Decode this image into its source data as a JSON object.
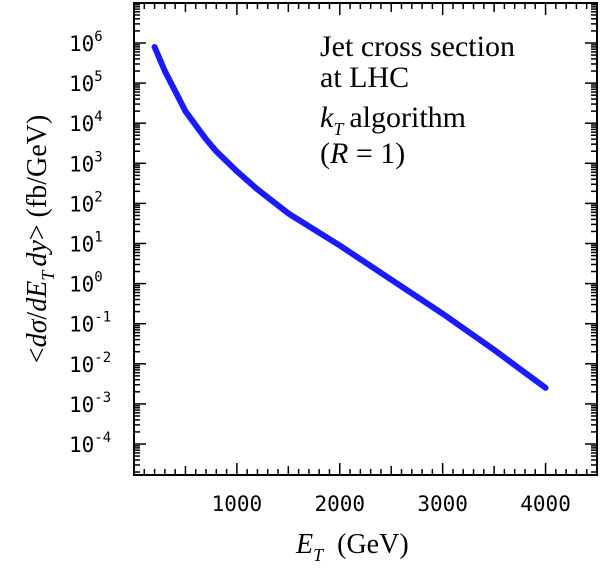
{
  "chart_data": {
    "type": "line",
    "title": "",
    "xlabel": "E_T (GeV)",
    "ylabel": "<dσ/dE_T dy> (fb/GeV)",
    "xlim": [
      0,
      4500
    ],
    "ylim_log10": [
      -5,
      7
    ],
    "yscale": "log",
    "grid": false,
    "x_ticks": [
      {
        "value": 1000,
        "label": "1000"
      },
      {
        "value": 2000,
        "label": "2000"
      },
      {
        "value": 3000,
        "label": "3000"
      },
      {
        "value": 4000,
        "label": "4000"
      }
    ],
    "y_ticks": [
      {
        "exp": 6,
        "base": "10",
        "sup": "6"
      },
      {
        "exp": 5,
        "base": "10",
        "sup": "5"
      },
      {
        "exp": 4,
        "base": "10",
        "sup": "4"
      },
      {
        "exp": 3,
        "base": "10",
        "sup": "3"
      },
      {
        "exp": 2,
        "base": "10",
        "sup": "2"
      },
      {
        "exp": 1,
        "base": "10",
        "sup": "1"
      },
      {
        "exp": 0,
        "base": "10",
        "sup": "0"
      },
      {
        "exp": -1,
        "base": "10",
        "sup": "-1"
      },
      {
        "exp": -2,
        "base": "10",
        "sup": "-2"
      },
      {
        "exp": -3,
        "base": "10",
        "sup": "-3"
      },
      {
        "exp": -4,
        "base": "10",
        "sup": "-4"
      }
    ],
    "series": [
      {
        "color": "#1a1aff",
        "x": [
          200,
          300,
          400,
          500,
          600,
          700,
          800,
          1000,
          1200,
          1500,
          2000,
          2500,
          3000,
          3500,
          4000
        ],
        "log10_y": [
          5.9,
          5.3,
          4.8,
          4.3,
          3.95,
          3.6,
          3.3,
          2.8,
          2.35,
          1.75,
          0.95,
          0.1,
          -0.75,
          -1.65,
          -2.6
        ]
      }
    ],
    "annotation_lines": [
      {
        "text": "Jet cross section",
        "italic": false
      },
      {
        "text": "at LHC",
        "italic": false
      },
      {
        "text": "k_T algorithm",
        "italic": false
      },
      {
        "text": "(R = 1)",
        "italic": false
      }
    ]
  }
}
